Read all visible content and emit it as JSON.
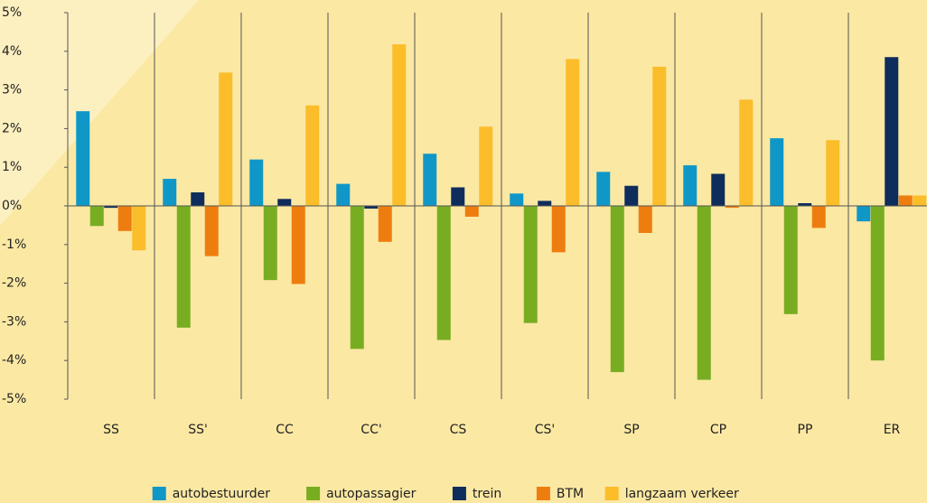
{
  "chart_data": {
    "type": "bar",
    "categories": [
      "SS",
      "SS'",
      "CC",
      "CC'",
      "CS",
      "CS'",
      "SP",
      "CP",
      "PP",
      "ER"
    ],
    "series": [
      {
        "name": "autobestuurder",
        "color": "#0f97c8",
        "values": [
          2.45,
          0.7,
          1.2,
          0.57,
          1.35,
          0.32,
          0.88,
          1.05,
          1.75,
          -0.4
        ]
      },
      {
        "name": "autopassagier",
        "color": "#78ad22",
        "values": [
          -0.52,
          -3.15,
          -1.92,
          -3.7,
          -3.47,
          -3.03,
          -4.3,
          -4.5,
          -2.8,
          -4.0
        ]
      },
      {
        "name": "trein",
        "color": "#0e2d5c",
        "values": [
          -0.05,
          0.35,
          0.18,
          -0.07,
          0.48,
          0.13,
          0.52,
          0.83,
          0.07,
          3.85
        ]
      },
      {
        "name": "BTM",
        "color": "#ee7d0f",
        "values": [
          -0.65,
          -1.3,
          -2.02,
          -0.93,
          -0.28,
          -1.2,
          -0.7,
          -0.05,
          -0.57,
          0.27
        ]
      },
      {
        "name": "langzaam verkeer",
        "color": "#fbbd2a",
        "values": [
          -1.15,
          3.45,
          2.6,
          4.18,
          2.05,
          3.8,
          3.6,
          2.75,
          1.7,
          0.27
        ]
      }
    ],
    "ylim": [
      -5,
      5
    ],
    "yticks": [
      {
        "value": -5,
        "label": "-5%"
      },
      {
        "value": -4,
        "label": "-4%"
      },
      {
        "value": -3,
        "label": "-3%"
      },
      {
        "value": -2,
        "label": "-2%"
      },
      {
        "value": -1,
        "label": "-1%"
      },
      {
        "value": 0,
        "label": "0%"
      },
      {
        "value": 1,
        "label": "1%"
      },
      {
        "value": 2,
        "label": "2%"
      },
      {
        "value": 3,
        "label": "3%"
      },
      {
        "value": 4,
        "label": "4%"
      },
      {
        "value": 5,
        "label": "5%"
      }
    ],
    "legend": "bottom"
  }
}
